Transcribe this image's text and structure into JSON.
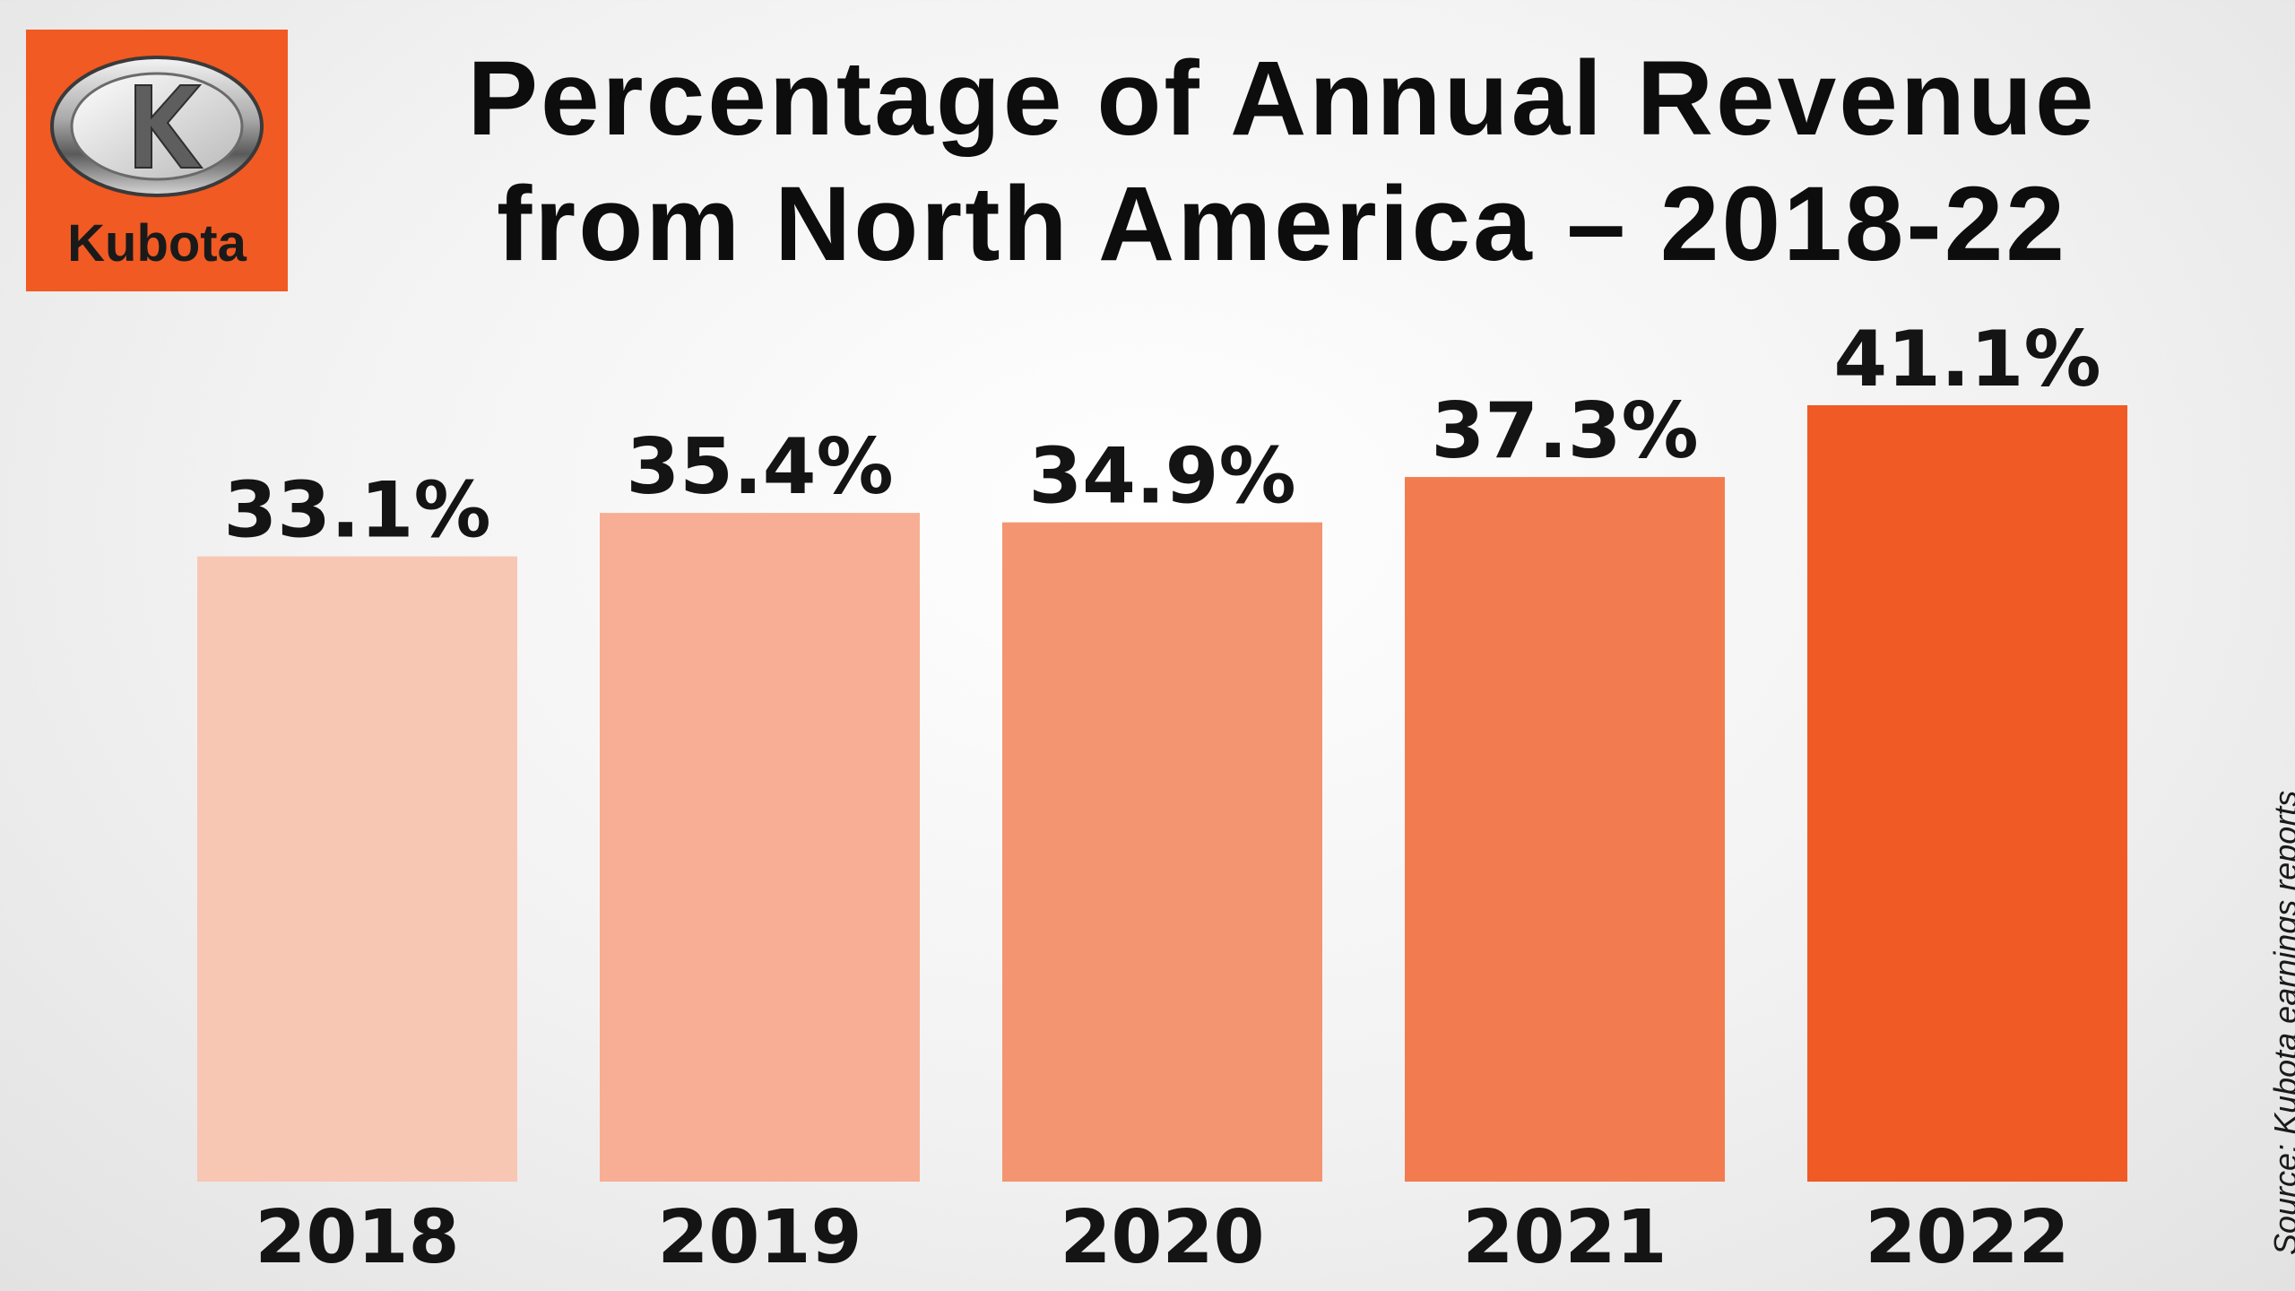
{
  "brand": {
    "name": "Kubota",
    "color": "#f15a22"
  },
  "title_line1": "Percentage of Annual Revenue",
  "title_line2": "from North America – 2018-22",
  "source": "Source: Kubota earnings reports",
  "chart_data": {
    "type": "bar",
    "title": "Percentage of Annual Revenue from North America – 2018-22",
    "xlabel": "",
    "ylabel": "",
    "categories": [
      "2018",
      "2019",
      "2020",
      "2021",
      "2022"
    ],
    "values": [
      33.1,
      35.4,
      34.9,
      37.3,
      41.1
    ],
    "value_labels": [
      "33.1%",
      "35.4%",
      "34.9%",
      "37.3%",
      "41.1%"
    ],
    "bar_colors": [
      "#f8c7b4",
      "#f8ae94",
      "#f39570",
      "#f27c50",
      "#f05a24"
    ],
    "ylim": [
      0,
      41.1
    ],
    "grid": false,
    "legend": "none"
  }
}
